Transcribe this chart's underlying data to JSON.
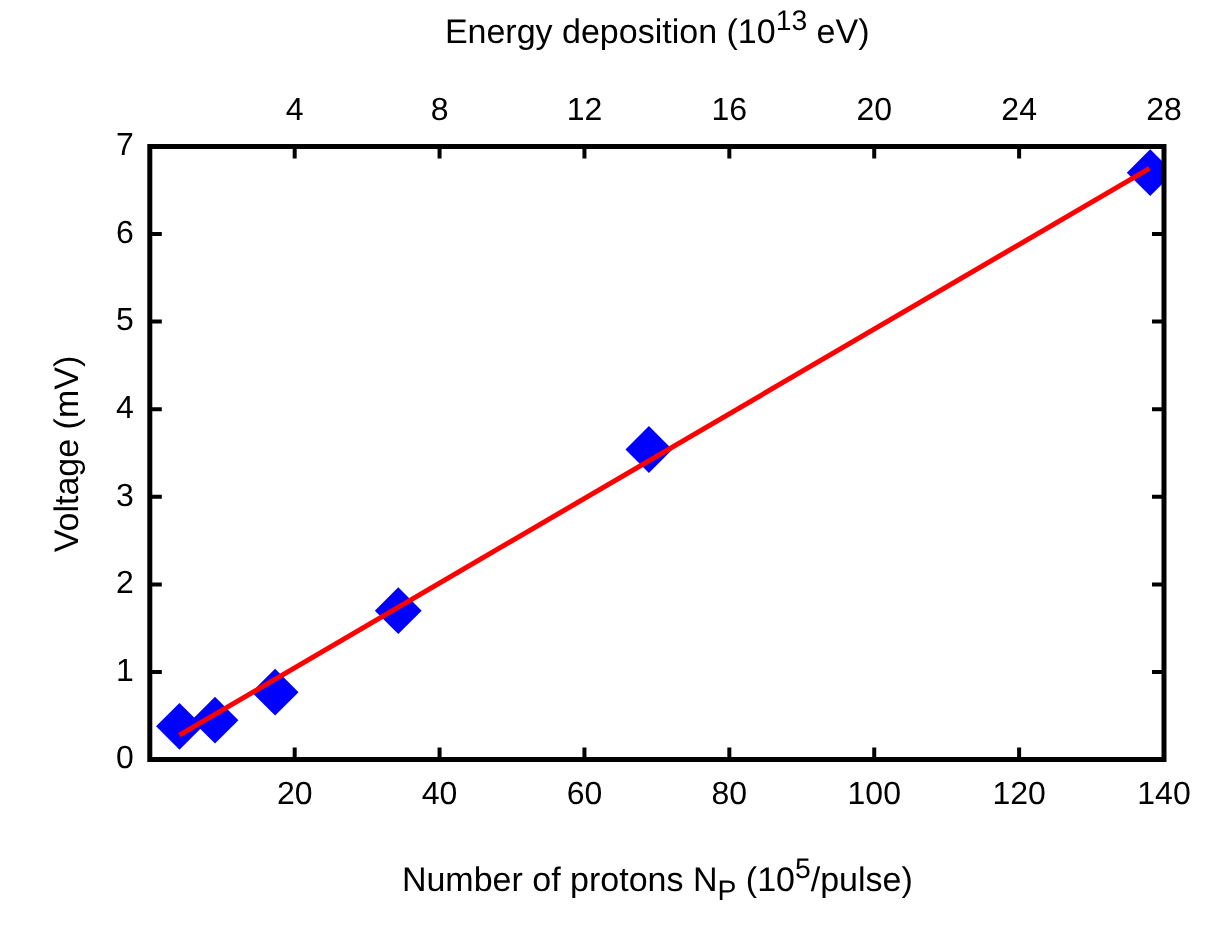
{
  "chart_data": {
    "type": "scatter",
    "xlabel": "Number of protons N$_{P}$ (10$^{5}$/pulse)",
    "x2label": "Energy deposition (10$^{13}$ eV)",
    "ylabel": "Voltage (mV)",
    "xlim": [
      0,
      140
    ],
    "xticks": [
      20,
      40,
      60,
      80,
      100,
      120,
      140
    ],
    "x2lim": [
      0,
      28
    ],
    "x2ticks": [
      4,
      8,
      12,
      16,
      20,
      24,
      28
    ],
    "ylim": [
      0,
      7
    ],
    "yticks": [
      0,
      1,
      2,
      3,
      4,
      5,
      6,
      7
    ],
    "grid": false,
    "legend": false,
    "series": [
      {
        "marker": "diamond",
        "color": "#0000ff",
        "x": [
          4.1,
          9.0,
          17.3,
          34.3,
          68.9,
          138.1
        ],
        "values": [
          0.38,
          0.45,
          0.77,
          1.7,
          3.54,
          6.7
        ]
      },
      {
        "type": "line",
        "marker": "none",
        "line_style": "solid",
        "color": "#ff0000",
        "x": [
          4.1,
          138
        ],
        "values": [
          0.28,
          6.75
        ]
      }
    ]
  }
}
